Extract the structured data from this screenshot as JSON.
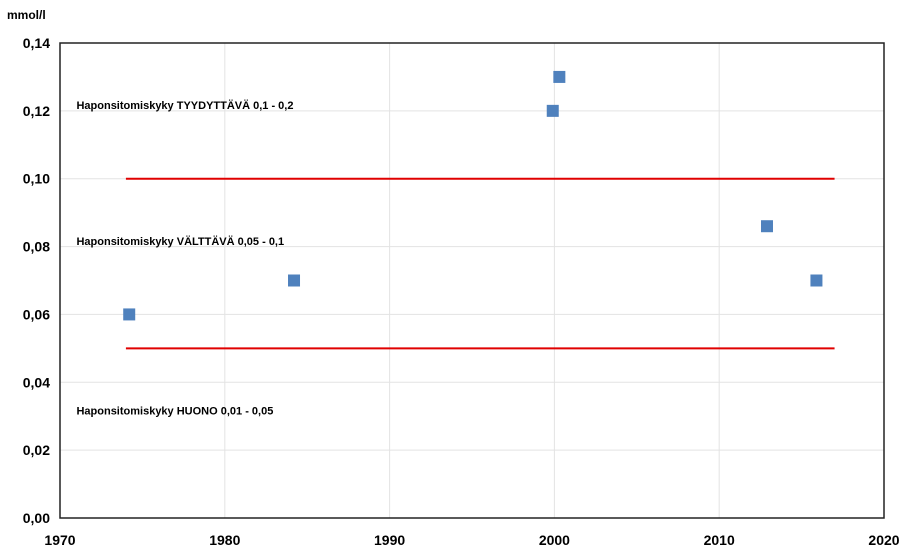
{
  "chart_data": {
    "type": "scatter",
    "title": "",
    "xlabel": "",
    "ylabel": "mmol/l",
    "xlim": [
      1970,
      2020
    ],
    "ylim": [
      0,
      0.14
    ],
    "x_ticks": [
      1970,
      1980,
      1990,
      2000,
      2010,
      2020
    ],
    "x_tick_labels": [
      "1970",
      "1980",
      "1990",
      "2000",
      "2010",
      "2020"
    ],
    "y_ticks": [
      0,
      0.02,
      0.04,
      0.06,
      0.08,
      0.1,
      0.12,
      0.14
    ],
    "y_tick_labels": [
      "0,00",
      "0,02",
      "0,04",
      "0,06",
      "0,08",
      "0,10",
      "0,12",
      "0,14"
    ],
    "grid": true,
    "series": [
      {
        "color": "#4F81BD",
        "marker": "square",
        "points": [
          {
            "x": 1974.2,
            "y": 0.06
          },
          {
            "x": 1984.2,
            "y": 0.07
          },
          {
            "x": 1999.9,
            "y": 0.12
          },
          {
            "x": 2000.3,
            "y": 0.13
          },
          {
            "x": 2012.9,
            "y": 0.086
          },
          {
            "x": 2015.9,
            "y": 0.07
          }
        ]
      }
    ],
    "reference_lines": [
      {
        "y": 0.1,
        "x_range": [
          1974,
          2017
        ],
        "color": "#e00000"
      },
      {
        "y": 0.05,
        "x_range": [
          1974,
          2017
        ],
        "color": "#e00000"
      }
    ],
    "annotations": [
      {
        "text": "Haponsitomiskyky  TYYDYTTÄVÄ 0,1 - 0,2",
        "x": 1971,
        "y": 0.1205
      },
      {
        "text": "Haponsitomiskyky  VÄLTTÄVÄ 0,05 - 0,1",
        "x": 1971,
        "y": 0.0805
      },
      {
        "text": "Haponsitomiskyky  HUONO 0,01 - 0,05",
        "x": 1971,
        "y": 0.0305
      }
    ]
  }
}
